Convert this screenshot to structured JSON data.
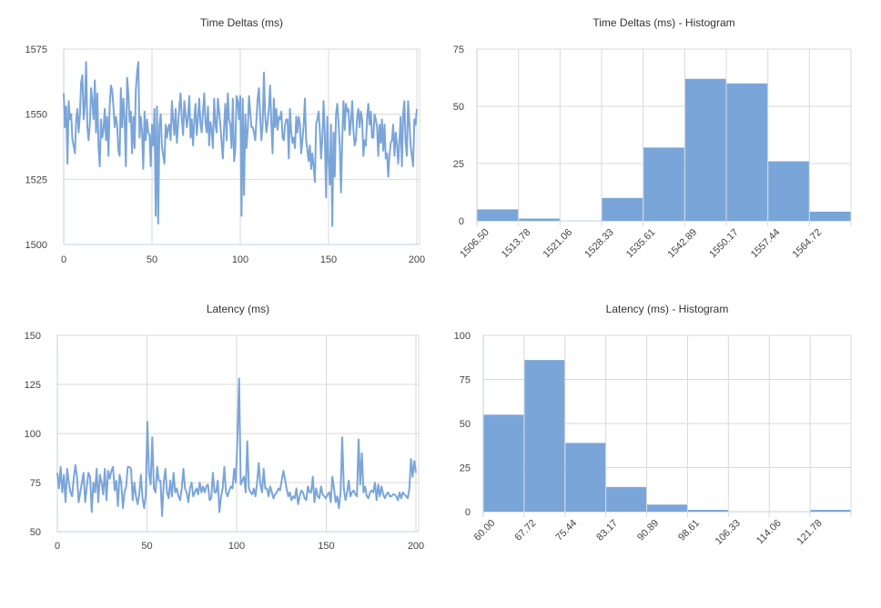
{
  "chart_data": [
    {
      "type": "line",
      "title": "Time Deltas (ms)",
      "xlabel": "",
      "ylabel": "",
      "xlim": [
        0,
        200
      ],
      "ylim": [
        1500,
        1575
      ],
      "xticks": [
        0,
        50,
        100,
        150,
        200
      ],
      "yticks": [
        1500,
        1525,
        1550,
        1575
      ],
      "grid": true,
      "color": "#7aa5d9",
      "series": [
        {
          "values": [
            1558,
            1545,
            1553,
            1531,
            1555,
            1548,
            1550,
            1540,
            1538,
            1535,
            1548,
            1552,
            1543,
            1550,
            1562,
            1565,
            1548,
            1553,
            1570,
            1545,
            1540,
            1546,
            1560,
            1555,
            1548,
            1563,
            1543,
            1558,
            1537,
            1530,
            1548,
            1541,
            1544,
            1552,
            1540,
            1549,
            1534,
            1553,
            1561,
            1559,
            1553,
            1545,
            1549,
            1546,
            1536,
            1534,
            1560,
            1545,
            1556,
            1548,
            1530,
            1564,
            1558,
            1547,
            1551,
            1535,
            1549,
            1537,
            1559,
            1566,
            1570,
            1541,
            1549,
            1543,
            1529,
            1551,
            1540,
            1548,
            1543,
            1542,
            1530,
            1546,
            1538,
            1552,
            1511,
            1553,
            1508,
            1546,
            1550,
            1538,
            1534,
            1531,
            1546,
            1541,
            1545,
            1546,
            1540,
            1555,
            1548,
            1542,
            1552,
            1539,
            1546,
            1553,
            1558,
            1548,
            1542,
            1555,
            1550,
            1545,
            1549,
            1557,
            1541,
            1548,
            1538,
            1548,
            1554,
            1542,
            1548,
            1556,
            1546,
            1543,
            1551,
            1558,
            1547,
            1543,
            1553,
            1538,
            1547,
            1544,
            1537,
            1556,
            1546,
            1543,
            1556,
            1551,
            1546,
            1539,
            1533,
            1545,
            1554,
            1540,
            1558,
            1548,
            1546,
            1537,
            1556,
            1532,
            1536,
            1557,
            1555,
            1548,
            1557,
            1511,
            1556,
            1519,
            1550,
            1537,
            1544,
            1557,
            1551,
            1545,
            1545,
            1543,
            1540,
            1548,
            1556,
            1560,
            1549,
            1540,
            1546,
            1566,
            1550,
            1543,
            1547,
            1552,
            1561,
            1546,
            1535,
            1556,
            1545,
            1552,
            1544,
            1549,
            1548,
            1551,
            1541,
            1540,
            1546,
            1548,
            1548,
            1533,
            1552,
            1543,
            1539,
            1541,
            1537,
            1549,
            1543,
            1549,
            1546,
            1535,
            1540,
            1546,
            1556,
            1540,
            1536,
            1532,
            1538,
            1529,
            1535,
            1530,
            1524,
            1546,
            1548,
            1551,
            1544,
            1533,
            1541,
            1555,
            1542,
            1518,
            1549,
            1532,
            1523,
            1546,
            1507,
            1543,
            1526,
            1550,
            1554,
            1547,
            1538,
            1520,
            1540,
            1555,
            1544,
            1554,
            1551,
            1552,
            1542,
            1547,
            1555,
            1544,
            1538,
            1540,
            1549,
            1552,
            1545,
            1551,
            1548,
            1534,
            1540,
            1538,
            1549,
            1554,
            1546,
            1551,
            1541,
            1541,
            1550,
            1548,
            1545,
            1534,
            1546,
            1539,
            1548,
            1536,
            1546,
            1533,
            1535,
            1526,
            1534,
            1539,
            1540,
            1546,
            1534,
            1543,
            1539,
            1531,
            1540,
            1549,
            1530,
            1550,
            1555,
            1539,
            1534,
            1555,
            1547,
            1538,
            1534,
            1530,
            1548,
            1546,
            1552
          ]
        }
      ]
    },
    {
      "type": "bar",
      "title": "Time Deltas (ms) - Histogram",
      "xlabel": "",
      "ylabel": "",
      "ylim": [
        0,
        75
      ],
      "yticks": [
        0,
        25,
        50,
        75
      ],
      "grid": true,
      "color": "#7aa5d9",
      "categories": [
        "1506.50",
        "1513.78",
        "1521.06",
        "1528.33",
        "1535.61",
        "1542.89",
        "1550.17",
        "1557.44",
        "1564.72"
      ],
      "values": [
        5,
        1,
        0,
        10,
        32,
        62,
        60,
        26,
        4
      ]
    },
    {
      "type": "line",
      "title": "Latency (ms)",
      "xlabel": "",
      "ylabel": "",
      "xlim": [
        0,
        200
      ],
      "ylim": [
        50,
        150
      ],
      "xticks": [
        0,
        50,
        100,
        150,
        200
      ],
      "yticks": [
        50,
        75,
        100,
        125,
        150
      ],
      "grid": true,
      "color": "#7aa5d9",
      "series": [
        {
          "values": [
            80,
            72,
            83,
            70,
            79,
            65,
            82,
            75,
            70,
            68,
            77,
            84,
            78,
            65,
            70,
            75,
            80,
            65,
            73,
            80,
            78,
            60,
            75,
            70,
            82,
            65,
            79,
            75,
            69,
            82,
            66,
            81,
            77,
            81,
            83,
            71,
            76,
            63,
            79,
            75,
            62,
            70,
            73,
            83,
            83,
            82,
            66,
            75,
            68,
            64,
            69,
            79,
            67,
            62,
            69,
            106,
            80,
            74,
            98,
            72,
            70,
            83,
            76,
            76,
            58,
            75,
            82,
            70,
            67,
            76,
            68,
            80,
            70,
            72,
            68,
            66,
            72,
            82,
            72,
            70,
            65,
            72,
            75,
            68,
            70,
            72,
            69,
            75,
            70,
            73,
            70,
            73,
            74,
            66,
            67,
            80,
            70,
            70,
            76,
            60,
            68,
            72,
            83,
            70,
            68,
            71,
            73,
            72,
            82,
            75,
            98,
            128,
            74,
            76,
            78,
            70,
            96,
            72,
            70,
            69,
            72,
            68,
            75,
            85,
            74,
            70,
            82,
            72,
            72,
            68,
            73,
            70,
            67,
            69,
            70,
            72,
            71,
            76,
            81,
            77,
            72,
            68,
            70,
            66,
            68,
            67,
            72,
            64,
            68,
            71,
            70,
            67,
            66,
            73,
            70,
            70,
            78,
            65,
            72,
            68,
            67,
            73,
            69,
            68,
            67,
            69,
            70,
            65,
            78,
            72,
            65,
            68,
            62,
            70,
            98,
            72,
            66,
            70,
            76,
            68,
            70,
            71,
            69,
            68,
            97,
            74,
            90,
            70,
            73,
            68,
            67,
            70,
            71,
            70,
            75,
            66,
            74,
            68,
            73,
            69,
            67,
            69,
            70,
            68,
            68,
            69,
            69,
            68,
            66,
            70,
            67,
            70,
            69,
            68,
            67,
            72,
            87,
            78,
            86,
            80
          ]
        }
      ]
    },
    {
      "type": "bar",
      "title": "Latency (ms) - Histogram",
      "xlabel": "",
      "ylabel": "",
      "ylim": [
        0,
        100
      ],
      "yticks": [
        0,
        25,
        50,
        75,
        100
      ],
      "grid": true,
      "color": "#7aa5d9",
      "categories": [
        "60.00",
        "67.72",
        "75.44",
        "83.17",
        "90.89",
        "98.61",
        "106.33",
        "114.06",
        "121.78"
      ],
      "values": [
        55,
        86,
        39,
        14,
        4,
        1,
        0,
        0,
        1
      ]
    }
  ]
}
